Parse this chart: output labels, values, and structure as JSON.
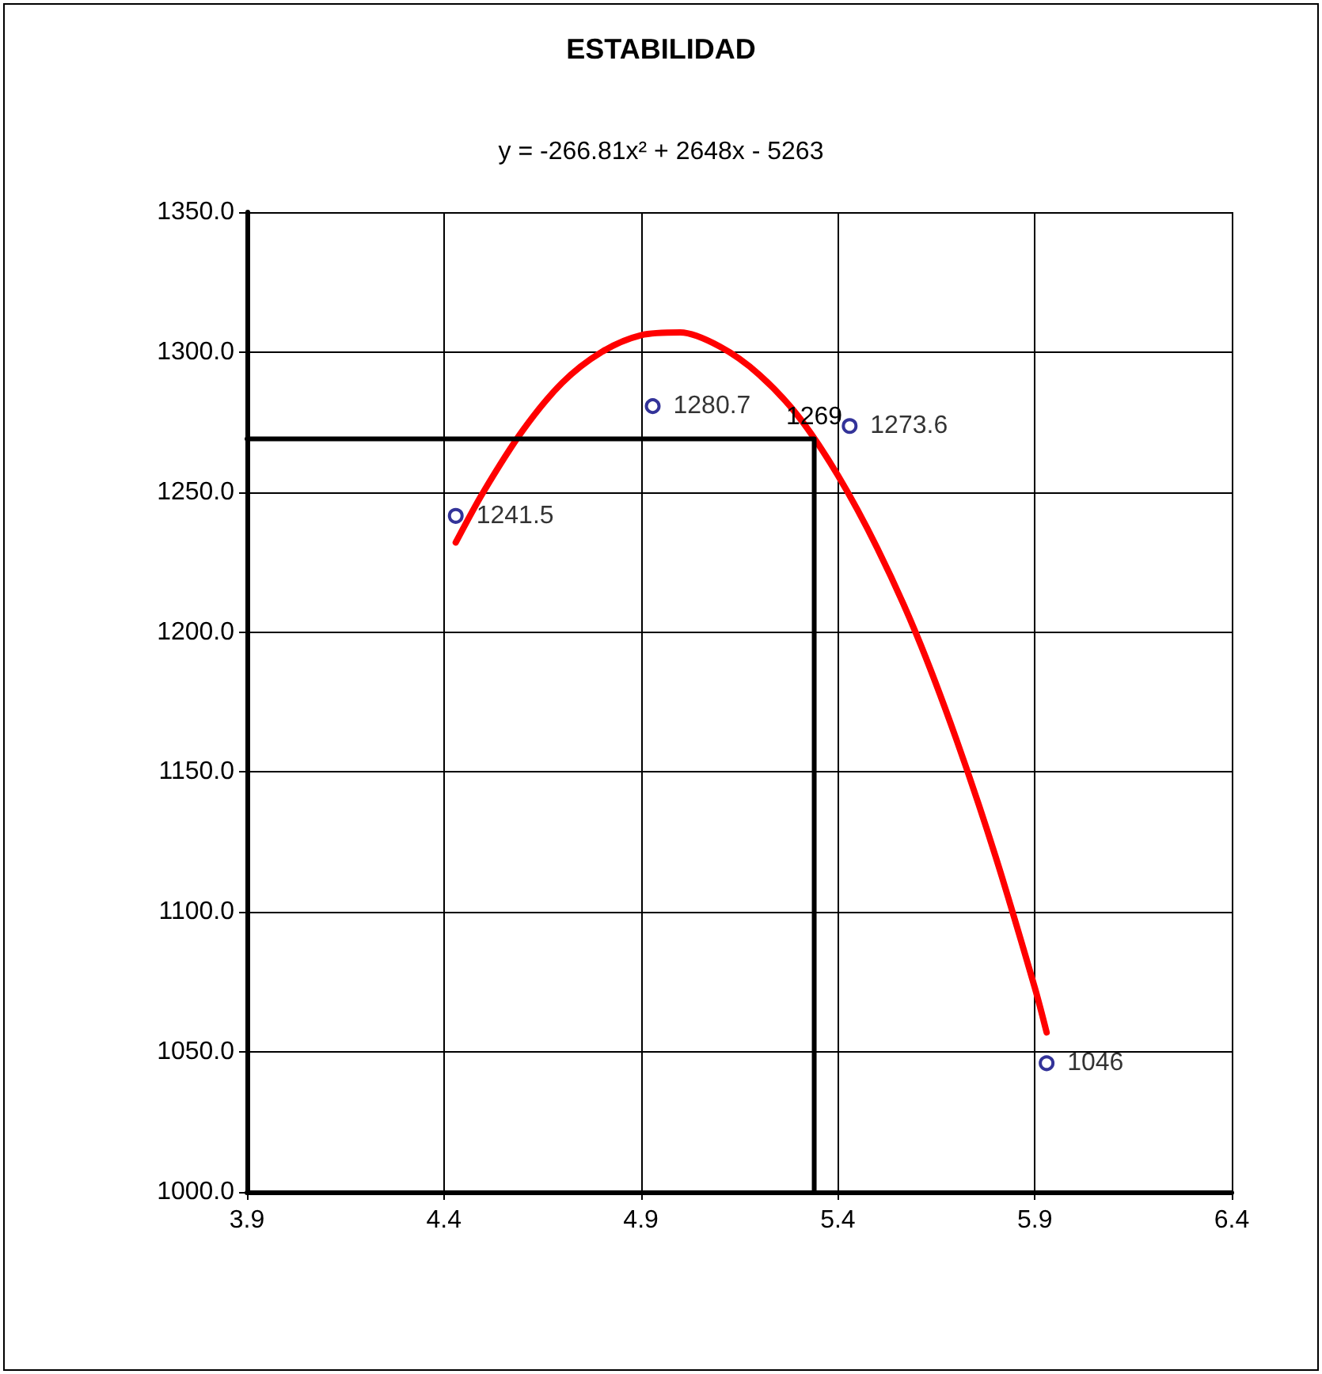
{
  "chart_data": {
    "type": "scatter",
    "title": "ESTABILIDAD",
    "annotations": [
      "y = -266.81x² + 2648x - 5263",
      {
        "text": "1269",
        "x": 5.34,
        "y": 1269
      }
    ],
    "series": [
      {
        "color": "#000080",
        "marker": "circle",
        "x": [
          4.43,
          4.93,
          5.43,
          5.93
        ],
        "values": [
          1241.5,
          1280.7,
          1273.6,
          1046
        ],
        "value_labels": [
          "1241.5",
          "1280.7",
          "1273.6",
          "1046"
        ]
      },
      {
        "type": "line",
        "color": "#ff0000",
        "marker": "none",
        "x": [
          4.43,
          4.5,
          4.6,
          4.7,
          4.8,
          4.9,
          5.0,
          5.1,
          5.2,
          5.3,
          5.4,
          5.5,
          5.6,
          5.7,
          5.8,
          5.9,
          5.93
        ],
        "values": [
          1232,
          1250,
          1272,
          1289,
          1300,
          1306,
          1307,
          1302,
          1292,
          1277,
          1256,
          1230,
          1199,
          1162,
          1120,
          1073,
          1057
        ]
      },
      {
        "type": "line",
        "color": "#000000",
        "marker": "none",
        "x": [
          3.9,
          5.34,
          5.34
        ],
        "values": [
          1269,
          1269,
          1000
        ]
      }
    ],
    "xlim": [
      3.9,
      6.4
    ],
    "xticks": [
      3.9,
      4.4,
      4.9,
      5.4,
      5.9,
      6.4
    ],
    "ylim": [
      1000,
      1350
    ],
    "yticks": [
      {
        "value": 1000,
        "label": "1000.0"
      },
      {
        "value": 1050,
        "label": "1050.0"
      },
      {
        "value": 1100,
        "label": "1100.0"
      },
      {
        "value": 1150,
        "label": "1150.0"
      },
      {
        "value": 1200,
        "label": "1200.0"
      },
      {
        "value": 1250,
        "label": "1250.0"
      },
      {
        "value": 1300,
        "label": "1300.0"
      },
      {
        "value": 1350,
        "label": "1350.0"
      }
    ],
    "grid": true
  }
}
